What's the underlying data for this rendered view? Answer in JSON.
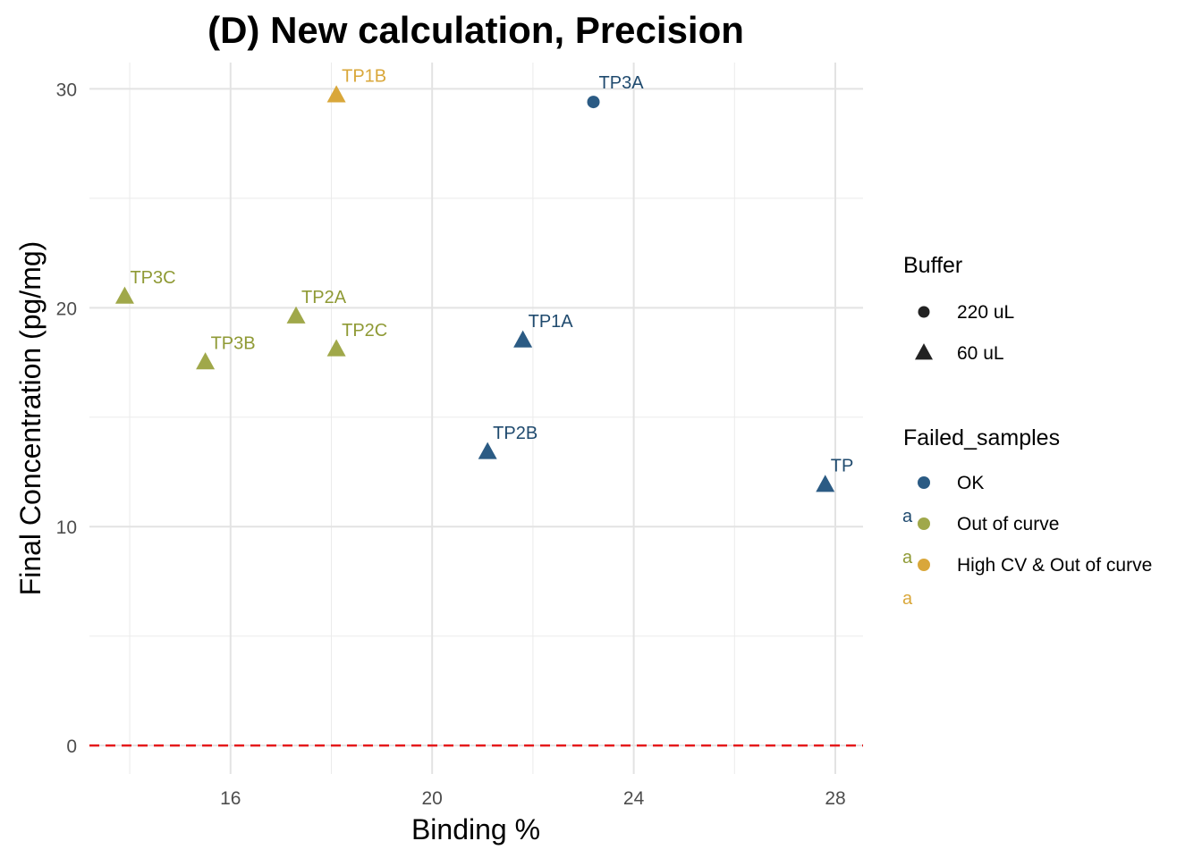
{
  "chart_data": {
    "type": "scatter",
    "title": "(D) New calculation, Precision",
    "xlabel": "Binding %",
    "ylabel": "Final Concentration (pg/mg)",
    "xlim": [
      13.2,
      28.55
    ],
    "ylim": [
      -1.3,
      31.2
    ],
    "x_ticks": [
      16,
      20,
      24,
      28
    ],
    "y_ticks": [
      0,
      10,
      20,
      30
    ],
    "grid": true,
    "reference_line": {
      "y": 0,
      "style": "dashed",
      "color": "#e41a1c"
    },
    "colors": {
      "OK": "#2b5b84",
      "Out of curve": "#a0a84a",
      "High CV & Out of curve": "#d9a73a"
    },
    "label_colors": {
      "OK": "#1f4a6e",
      "Out of curve": "#8f9a35",
      "High CV & Out of curve": "#d9a73a"
    },
    "points": [
      {
        "label": "TP3A",
        "x": 23.2,
        "y": 29.4,
        "buffer": "220 uL",
        "status": "OK"
      },
      {
        "label": "TP1B",
        "x": 18.1,
        "y": 29.7,
        "buffer": "60 uL",
        "status": "High CV & Out of curve"
      },
      {
        "label": "TP3C",
        "x": 13.9,
        "y": 20.5,
        "buffer": "60 uL",
        "status": "Out of curve"
      },
      {
        "label": "TP2A",
        "x": 17.3,
        "y": 19.6,
        "buffer": "60 uL",
        "status": "Out of curve"
      },
      {
        "label": "TP2C",
        "x": 18.1,
        "y": 18.1,
        "buffer": "60 uL",
        "status": "Out of curve"
      },
      {
        "label": "TP3B",
        "x": 15.5,
        "y": 17.5,
        "buffer": "60 uL",
        "status": "Out of curve"
      },
      {
        "label": "TP1A",
        "x": 21.8,
        "y": 18.5,
        "buffer": "60 uL",
        "status": "OK"
      },
      {
        "label": "TP2B",
        "x": 21.1,
        "y": 13.4,
        "buffer": "60 uL",
        "status": "OK"
      },
      {
        "label": "TP",
        "x": 27.8,
        "y": 11.9,
        "buffer": "60 uL",
        "status": "OK"
      }
    ],
    "legend": {
      "placement": "right",
      "buffer": {
        "title": "Buffer",
        "items": [
          {
            "label": "220 uL",
            "shape": "circle"
          },
          {
            "label": "60 uL",
            "shape": "triangle"
          }
        ]
      },
      "failed_samples": {
        "title": "Failed_samples",
        "items": [
          {
            "label": "OK",
            "key": "OK"
          },
          {
            "label": "Out of curve",
            "key": "Out of curve"
          },
          {
            "label": "High CV & Out of curve",
            "key": "High CV & Out of curve"
          }
        ],
        "text_key": "a"
      }
    }
  }
}
